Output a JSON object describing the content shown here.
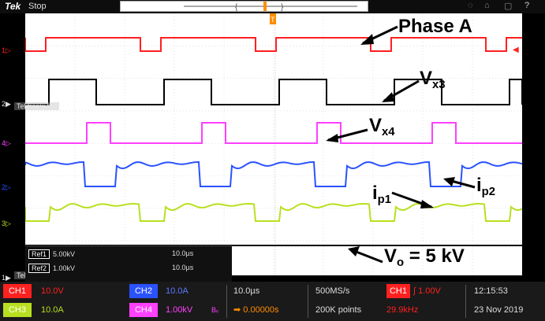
{
  "topbar": {
    "logo": "Tek",
    "state": "Stop"
  },
  "markers": {
    "ch1": "1",
    "ch2": "2",
    "ch4": "4",
    "ch3": "3",
    "ref": "1"
  },
  "watermark": "Tektronix.Inc",
  "refs": [
    {
      "label": "Ref1",
      "scale": "5.00kV",
      "time": "10.0µs"
    },
    {
      "label": "Ref2",
      "scale": "1.00kV",
      "time": "10.0µs"
    }
  ],
  "annotations": {
    "phase_a": "Phase A",
    "vx3": "V",
    "vx3_sub": "x3",
    "vx4": "V",
    "vx4_sub": "x4",
    "ip1": "i",
    "ip1_sub": "p1",
    "ip2": "i",
    "ip2_sub": "p2",
    "vo": "V",
    "vo_sub": "o",
    "vo_rest": " = 5 kV"
  },
  "bottom": {
    "ch1": {
      "label": "CH1",
      "value": "10.0V",
      "color": "#ff2020"
    },
    "ch2": {
      "label": "CH2",
      "value": "10.0A",
      "color": "#2a52ff"
    },
    "ch3": {
      "label": "CH3",
      "value": "10.0A",
      "color": "#b8e020"
    },
    "ch4": {
      "label": "CH4",
      "value": "1.00kV",
      "color": "#ff40ff"
    },
    "bw": "Bᵥ",
    "timebase": "10.0µs",
    "position": "0.00000s",
    "sample_rate": "500MS/s",
    "record": "200K points",
    "trig_ch": "CH1",
    "trig_level": "1.00V",
    "trig_freq": "29.9kHz",
    "time": "12:15:53",
    "date": "23 Nov 2019"
  },
  "colors": {
    "ch1": "#ff2020",
    "ch2": "#2a52ff",
    "ch3": "#b8e020",
    "ch4": "#ff40ff",
    "ref": "#000000",
    "trigger": "#ff8c00"
  }
}
